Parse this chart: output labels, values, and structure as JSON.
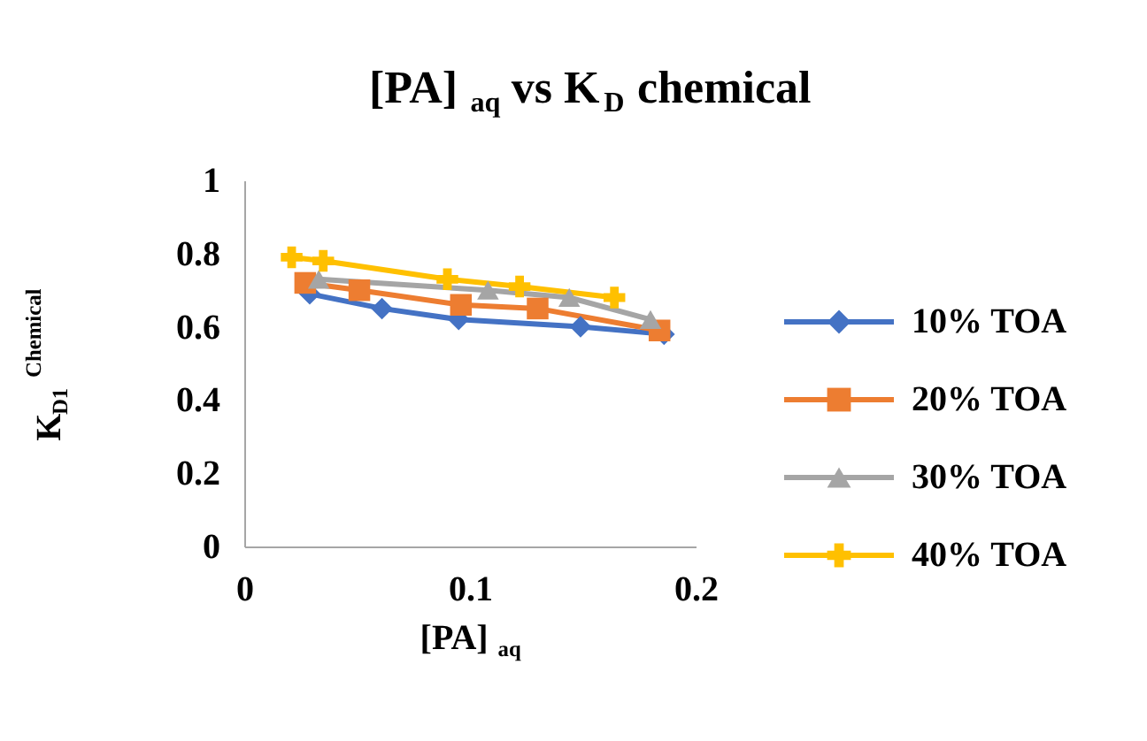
{
  "chart_data": {
    "type": "line",
    "title": "[PA]$_{aq}$ vs K$_{D}$ chemical",
    "xlabel": "[PA]$_{aq}$",
    "ylabel": "K$_{D1}$ $^{Chemical}$",
    "xlim": [
      0,
      0.2
    ],
    "xticks": [
      0,
      0.1,
      0.2
    ],
    "ylim": [
      0,
      1
    ],
    "yticks": [
      0,
      0.2,
      0.4,
      0.6,
      0.8,
      1
    ],
    "grid": false,
    "legend": "right",
    "line_style": "solid",
    "series": [
      {
        "name": "10% TOA",
        "color": "#4472c4",
        "marker": "diamond",
        "x": [
          0.029,
          0.061,
          0.095,
          0.149,
          0.186
        ],
        "values": [
          0.69,
          0.65,
          0.62,
          0.6,
          0.58
        ]
      },
      {
        "name": "20% TOA",
        "color": "#ed7d31",
        "marker": "square",
        "x": [
          0.027,
          0.051,
          0.096,
          0.13,
          0.184
        ],
        "values": [
          0.72,
          0.7,
          0.66,
          0.65,
          0.59
        ]
      },
      {
        "name": "30% TOA",
        "color": "#a5a5a5",
        "marker": "triangle",
        "x": [
          0.033,
          0.108,
          0.144,
          0.18
        ],
        "values": [
          0.73,
          0.7,
          0.68,
          0.62
        ]
      },
      {
        "name": "40% TOA",
        "color": "#ffc000",
        "marker": "cross",
        "x": [
          0.021,
          0.035,
          0.09,
          0.122,
          0.164
        ],
        "values": [
          0.79,
          0.78,
          0.73,
          0.71,
          0.68
        ]
      }
    ]
  }
}
